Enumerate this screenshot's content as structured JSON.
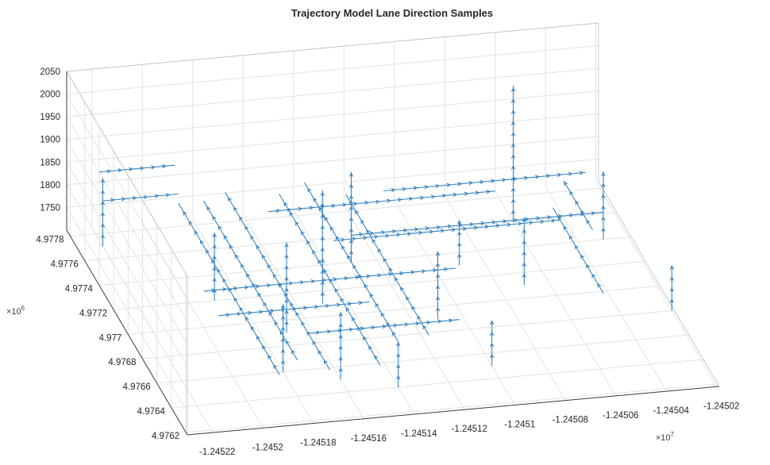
{
  "chart_data": {
    "type": "quiver3",
    "title": "Trajectory Model Lane Direction Samples",
    "xlabel": "",
    "ylabel": "",
    "zlabel": "",
    "x_ticks": [
      "-1.24522",
      "-1.2452",
      "-1.24518",
      "-1.24516",
      "-1.24514",
      "-1.24512",
      "-1.2451",
      "-1.24508",
      "-1.24506",
      "-1.24504",
      "-1.24502"
    ],
    "x_multiplier": "×10",
    "x_multiplier_exp": "7",
    "y_ticks": [
      "4.9762",
      "4.9764",
      "4.9766",
      "4.9768",
      "4.977",
      "4.9772",
      "4.9774",
      "4.9776",
      "4.9778"
    ],
    "y_multiplier": "×10",
    "y_multiplier_exp": "6",
    "z_ticks": [
      "1750",
      "1800",
      "1850",
      "1900",
      "1950",
      "2000",
      "2050"
    ],
    "xlim": [
      -12452300,
      -12450190
    ],
    "ylim": [
      4976180,
      4977850
    ],
    "zlim": [
      1700,
      2050
    ],
    "grid": true,
    "color": "#2f7fbf",
    "segments": [
      {
        "axis": "x",
        "from": [
          -12452200,
          4977750,
          1850
        ],
        "to": [
          -12451900,
          4977750,
          1850
        ]
      },
      {
        "axis": "x",
        "from": [
          -12452200,
          4977700,
          1800
        ],
        "to": [
          -12451900,
          4977700,
          1800
        ]
      },
      {
        "axis": "x",
        "from": [
          -12452000,
          4977000,
          1780
        ],
        "to": [
          -12451000,
          4977000,
          1780
        ]
      },
      {
        "axis": "x",
        "from": [
          -12452000,
          4976800,
          1780
        ],
        "to": [
          -12451400,
          4976800,
          1780
        ]
      },
      {
        "axis": "x",
        "from": [
          -12451700,
          4976600,
          1780
        ],
        "to": [
          -12451100,
          4976600,
          1780
        ]
      },
      {
        "axis": "x",
        "from": [
          -12451400,
          4977300,
          1780
        ],
        "to": [
          -12450500,
          4977300,
          1780
        ]
      },
      {
        "axis": "x",
        "from": [
          -12451300,
          4977400,
          1760
        ],
        "to": [
          -12450300,
          4977400,
          1760
        ]
      },
      {
        "axis": "x",
        "from": [
          -12451600,
          4977500,
          1800
        ],
        "to": [
          -12450700,
          4977500,
          1800
        ]
      },
      {
        "axis": "x",
        "from": [
          -12451100,
          4977650,
          1780
        ],
        "to": [
          -12450300,
          4977650,
          1780
        ]
      },
      {
        "axis": "y",
        "from": [
          -12451900,
          4976300,
          1780
        ],
        "to": [
          -12451900,
          4977700,
          1780
        ]
      },
      {
        "axis": "y",
        "from": [
          -12451800,
          4976400,
          1780
        ],
        "to": [
          -12451800,
          4977700,
          1780
        ]
      },
      {
        "axis": "y",
        "from": [
          -12451700,
          4976300,
          1780
        ],
        "to": [
          -12451700,
          4977750,
          1780
        ]
      },
      {
        "axis": "y",
        "from": [
          -12451500,
          4976300,
          1780
        ],
        "to": [
          -12451500,
          4977700,
          1780
        ]
      },
      {
        "axis": "y",
        "from": [
          -12451400,
          4976400,
          1800
        ],
        "to": [
          -12451400,
          4977700,
          1800
        ]
      },
      {
        "axis": "y",
        "from": [
          -12451250,
          4976500,
          1780
        ],
        "to": [
          -12451250,
          4977650,
          1780
        ]
      },
      {
        "axis": "y",
        "from": [
          -12450500,
          4976700,
          1780
        ],
        "to": [
          -12450500,
          4977400,
          1780
        ]
      },
      {
        "axis": "y",
        "from": [
          -12450400,
          4977200,
          1780
        ],
        "to": [
          -12450400,
          4977600,
          1780
        ]
      },
      {
        "axis": "z",
        "from": [
          -12452200,
          4977700,
          1700
        ],
        "to": [
          -12452200,
          4977700,
          1850
        ]
      },
      {
        "axis": "z",
        "from": [
          -12451900,
          4977200,
          1700
        ],
        "to": [
          -12451900,
          4977200,
          1850
        ]
      },
      {
        "axis": "z",
        "from": [
          -12451700,
          4976900,
          1700
        ],
        "to": [
          -12451700,
          4976900,
          1900
        ]
      },
      {
        "axis": "z",
        "from": [
          -12451600,
          4976500,
          1700
        ],
        "to": [
          -12451600,
          4976500,
          1850
        ]
      },
      {
        "axis": "z",
        "from": [
          -12451500,
          4977100,
          1700
        ],
        "to": [
          -12451500,
          4977100,
          1950
        ]
      },
      {
        "axis": "z",
        "from": [
          -12451400,
          4976400,
          1700
        ],
        "to": [
          -12451400,
          4976400,
          1800
        ]
      },
      {
        "axis": "z",
        "from": [
          -12451300,
          4977400,
          1700
        ],
        "to": [
          -12451300,
          4977400,
          1900
        ]
      },
      {
        "axis": "z",
        "from": [
          -12451100,
          4976900,
          1700
        ],
        "to": [
          -12451100,
          4976900,
          1850
        ]
      },
      {
        "axis": "z",
        "from": [
          -12450900,
          4977300,
          1700
        ],
        "to": [
          -12450900,
          4977300,
          1800
        ]
      },
      {
        "axis": "z",
        "from": [
          -12450700,
          4977100,
          1700
        ],
        "to": [
          -12450700,
          4977100,
          1850
        ]
      },
      {
        "axis": "z",
        "from": [
          -12450600,
          4977600,
          1700
        ],
        "to": [
          -12450600,
          4977600,
          2000
        ]
      },
      {
        "axis": "z",
        "from": [
          -12450300,
          4977400,
          1700
        ],
        "to": [
          -12450300,
          4977400,
          1850
        ]
      },
      {
        "axis": "z",
        "from": [
          -12450200,
          4976800,
          1700
        ],
        "to": [
          -12450200,
          4976800,
          1800
        ]
      },
      {
        "axis": "z",
        "from": [
          -12451800,
          4976600,
          1700
        ],
        "to": [
          -12451800,
          4976600,
          1850
        ]
      },
      {
        "axis": "z",
        "from": [
          -12451000,
          4976500,
          1700
        ],
        "to": [
          -12451000,
          4976500,
          1800
        ]
      }
    ]
  }
}
